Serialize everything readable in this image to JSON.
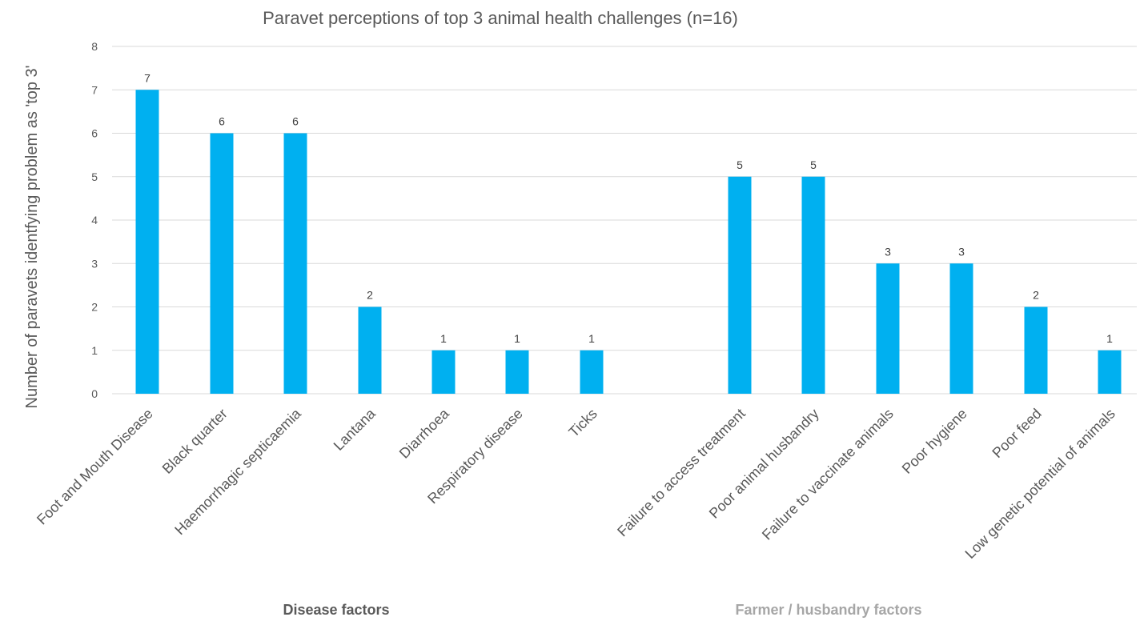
{
  "chart_data": {
    "type": "bar",
    "title": "Paravet perceptions of top 3 animal health challenges (n=16)",
    "xlabel": "",
    "ylabel": "Number of paravets identfying problem as 'top 3'",
    "ylim": [
      0,
      8
    ],
    "yticks": [
      0,
      1,
      2,
      3,
      4,
      5,
      6,
      7,
      8
    ],
    "grid": true,
    "legend": "none",
    "bar_color": "#00B0F0",
    "groups": [
      {
        "label": "Disease factors",
        "label_color": "#595959",
        "categories": [
          "Foot and Mouth Disease",
          "Black quarter",
          "Haemorrhagic septicaemia",
          "Lantana",
          "Diarrhoea",
          "Respiratory disease",
          "Ticks"
        ],
        "values": [
          7,
          6,
          6,
          2,
          1,
          1,
          1
        ]
      },
      {
        "label": "Farmer / husbandry factors",
        "label_color": "#a6a6a6",
        "categories": [
          "Failure to access treatment",
          "Poor animal husbandry",
          "Failure to vaccinate animals",
          "Poor hygiene",
          "Poor feed",
          "Low genetic potential of animals"
        ],
        "values": [
          5,
          5,
          3,
          3,
          2,
          1
        ]
      }
    ]
  }
}
